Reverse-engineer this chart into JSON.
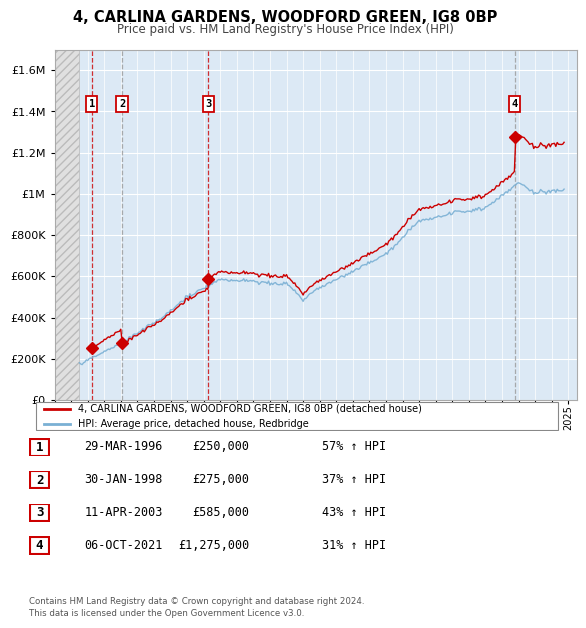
{
  "title": "4, CARLINA GARDENS, WOODFORD GREEN, IG8 0BP",
  "subtitle": "Price paid vs. HM Land Registry's House Price Index (HPI)",
  "xlim": [
    1994.0,
    2025.5
  ],
  "ylim": [
    0,
    1700000
  ],
  "yticks": [
    0,
    200000,
    400000,
    600000,
    800000,
    1000000,
    1200000,
    1400000,
    1600000
  ],
  "ytick_labels": [
    "£0",
    "£200K",
    "£400K",
    "£600K",
    "£800K",
    "£1M",
    "£1.2M",
    "£1.4M",
    "£1.6M"
  ],
  "plot_bg": "#dce9f5",
  "red_line_color": "#cc0000",
  "blue_line_color": "#7ab0d4",
  "sale_dates_decimal": [
    1996.24,
    1998.08,
    2003.28,
    2021.76
  ],
  "sale_prices": [
    250000,
    275000,
    585000,
    1275000
  ],
  "sale_labels": [
    "1",
    "2",
    "3",
    "4"
  ],
  "legend_red_label": "4, CARLINA GARDENS, WOODFORD GREEN, IG8 0BP (detached house)",
  "legend_blue_label": "HPI: Average price, detached house, Redbridge",
  "table_data": [
    [
      "1",
      "29-MAR-1996",
      "£250,000",
      "57% ↑ HPI"
    ],
    [
      "2",
      "30-JAN-1998",
      "£275,000",
      "37% ↑ HPI"
    ],
    [
      "3",
      "11-APR-2003",
      "£585,000",
      "43% ↑ HPI"
    ],
    [
      "4",
      "06-OCT-2021",
      "£1,275,000",
      "31% ↑ HPI"
    ]
  ],
  "footer_text": "Contains HM Land Registry data © Crown copyright and database right 2024.\nThis data is licensed under the Open Government Licence v3.0.",
  "hatch_end_year": 1995.5,
  "data_start_year": 1995.0,
  "data_end_year": 2024.75
}
